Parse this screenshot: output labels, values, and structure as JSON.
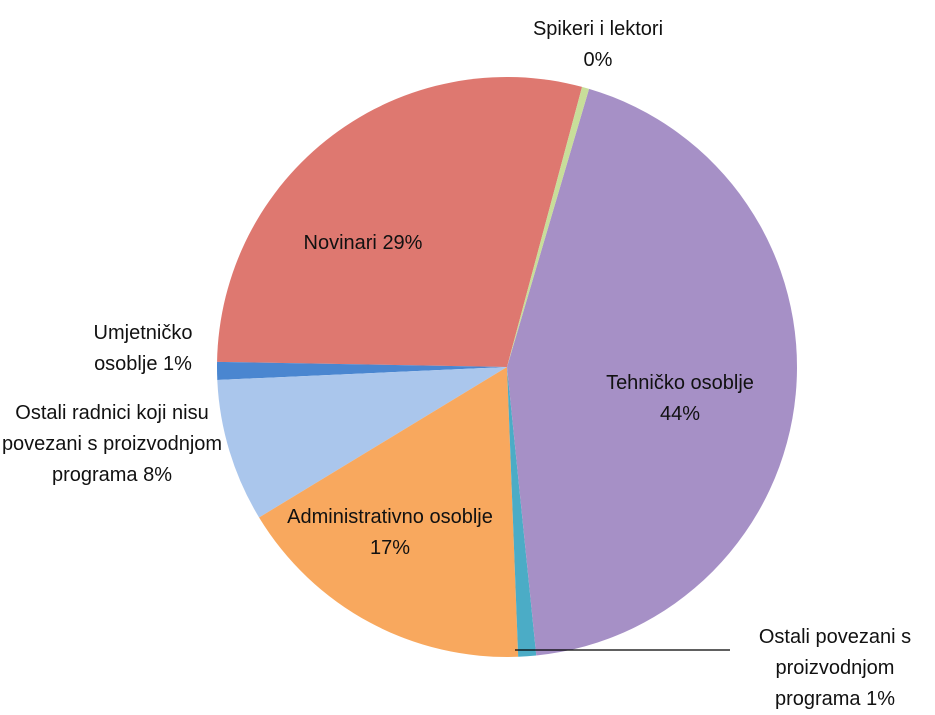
{
  "chart_data": {
    "type": "pie",
    "categories": [
      "Spikeri i lektori",
      "Tehničko osoblje",
      "Ostali povezani s proizvodnjom programa",
      "Administrativno osoblje",
      "Ostali radnici koji nisu povezani s proizvodnjom programa",
      "Umjetničko osoblje",
      "Novinari"
    ],
    "values": [
      0.4,
      44,
      1,
      17,
      8,
      1,
      29
    ],
    "value_labels": [
      "0%",
      "44%",
      "1%",
      "17%",
      "8%",
      "1%",
      "29%"
    ],
    "colors": [
      "#c8de9a",
      "#a690c6",
      "#4bacc6",
      "#f8a85e",
      "#aac6ec",
      "#4a86d0",
      "#de7870"
    ]
  }
}
